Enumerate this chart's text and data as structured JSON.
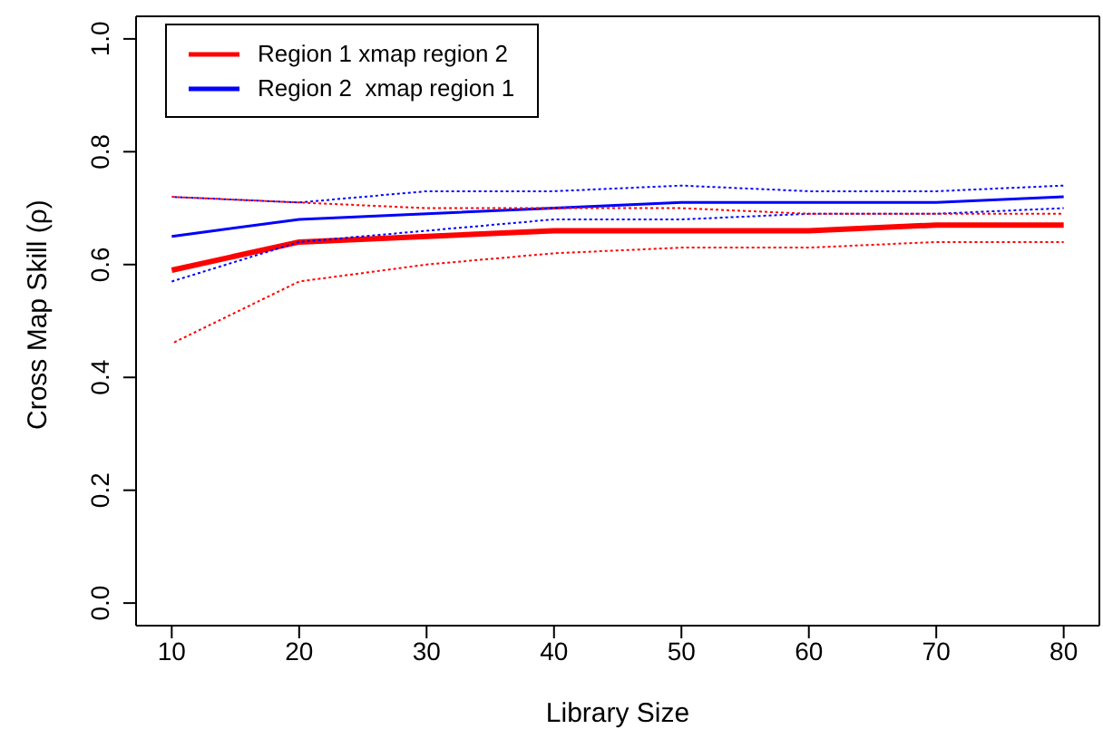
{
  "chart_data": {
    "type": "line",
    "xlabel": "Library Size",
    "ylabel": "Cross Map Skill (ρ)",
    "x": [
      10,
      20,
      30,
      40,
      50,
      60,
      70,
      80
    ],
    "series": [
      {
        "name": "Region 1 xmap region 2",
        "color": "#ff0000",
        "values": [
          0.59,
          0.64,
          0.65,
          0.66,
          0.66,
          0.66,
          0.67,
          0.67
        ]
      },
      {
        "name": "Region 2  xmap region 1",
        "color": "#0000ff",
        "values": [
          0.65,
          0.68,
          0.69,
          0.7,
          0.71,
          0.71,
          0.71,
          0.72
        ]
      },
      {
        "color": "#ff0000",
        "line_style": "dotted",
        "values": [
          0.46,
          0.57,
          0.6,
          0.62,
          0.63,
          0.63,
          0.64,
          0.64
        ]
      },
      {
        "color": "#0000ff",
        "line_style": "dotted",
        "values": [
          0.57,
          0.64,
          0.66,
          0.68,
          0.68,
          0.69,
          0.69,
          0.7
        ]
      },
      {
        "color": "#0000ff",
        "line_style": "dotted",
        "values": [
          0.72,
          0.71,
          0.73,
          0.73,
          0.74,
          0.73,
          0.73,
          0.74
        ]
      },
      {
        "color": "#ff0000",
        "line_style": "dotted",
        "values": [
          0.72,
          0.71,
          0.7,
          0.7,
          0.7,
          0.69,
          0.69,
          0.69
        ]
      }
    ],
    "xlim": [
      7.2,
      82.8
    ],
    "xticks": [
      10,
      20,
      30,
      40,
      50,
      60,
      70,
      80
    ],
    "ylim": [
      -0.04,
      1.04
    ],
    "yticks": [
      {
        "value": 0,
        "label": "0.0"
      },
      0.2,
      0.4,
      0.6,
      0.8,
      {
        "value": 1,
        "label": "1.0"
      }
    ],
    "grid": false,
    "legend": "top left",
    "marker": "none",
    "line_style": "solid"
  }
}
